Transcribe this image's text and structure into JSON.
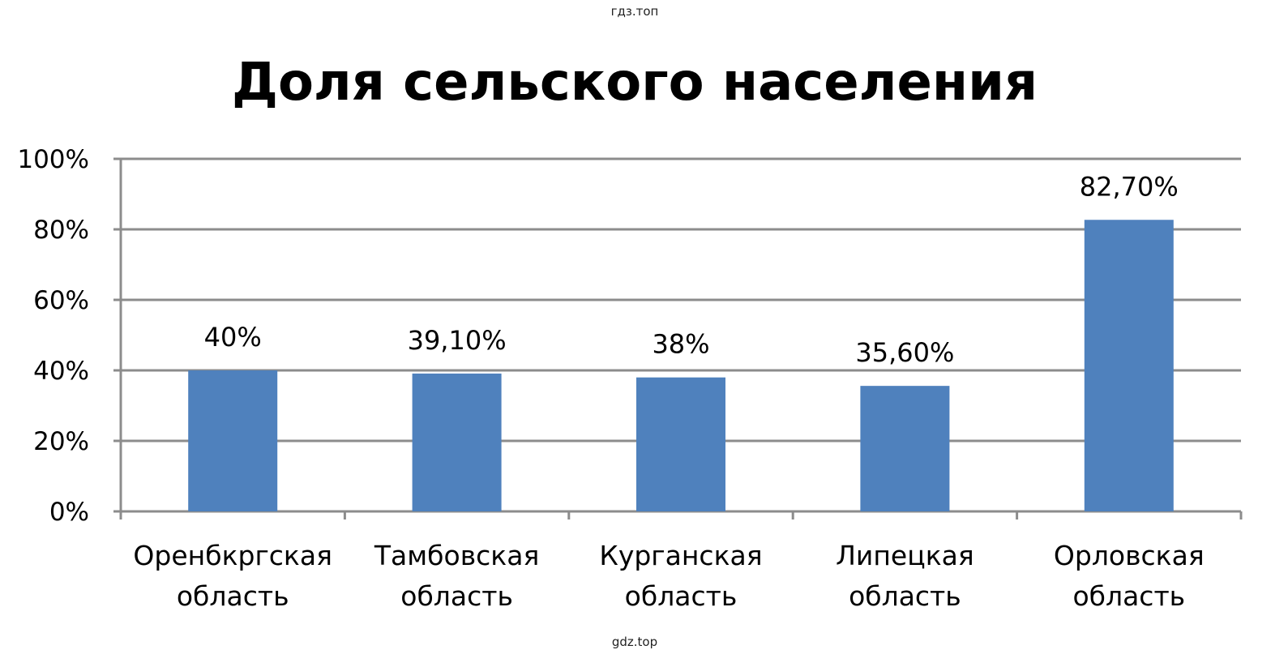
{
  "watermark_top": "гдз.топ",
  "watermark_bottom": "gdz.top",
  "chart_data": {
    "type": "bar",
    "title": "Доля сельского  населения",
    "categories": [
      [
        "Оренбкргская",
        "область"
      ],
      [
        "Тамбовская",
        "область"
      ],
      [
        "Курганская",
        "область"
      ],
      [
        "Липецкая",
        "область"
      ],
      [
        "Орловская",
        "область"
      ]
    ],
    "values": [
      40,
      39.1,
      38,
      35.6,
      82.7
    ],
    "data_labels": [
      "40%",
      "39,10%",
      "38%",
      "35,60%",
      "82,70%"
    ],
    "yticks": [
      0,
      20,
      40,
      60,
      80,
      100
    ],
    "ytick_labels": [
      "0%",
      "20%",
      "40%",
      "60%",
      "80%",
      "100%"
    ],
    "ylim": [
      0,
      100
    ],
    "xlabel": "",
    "ylabel": "",
    "grid": true,
    "bar_color": "#4F81BD",
    "grid_color": "#8C8C8C"
  }
}
